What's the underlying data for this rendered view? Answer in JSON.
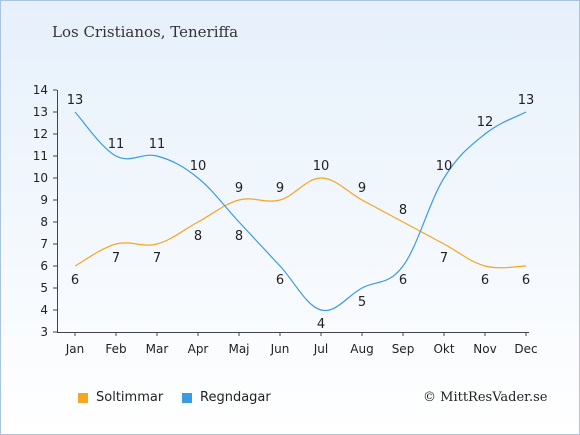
{
  "colors": {
    "sun": "#f5a623",
    "rain": "#3b9ae1"
  },
  "footer": {
    "copyright": "© MittResVader.se"
  },
  "chart_data": {
    "type": "line",
    "title": "Los Cristianos, Teneriffa",
    "categories": [
      "Jan",
      "Feb",
      "Mar",
      "Apr",
      "Maj",
      "Jun",
      "Jul",
      "Aug",
      "Sep",
      "Okt",
      "Nov",
      "Dec"
    ],
    "series": [
      {
        "name": "Soltimmar",
        "color": "#f5a623",
        "values": [
          6,
          7,
          7,
          8,
          9,
          9,
          10,
          9,
          8,
          7,
          6,
          6
        ]
      },
      {
        "name": "Regndagar",
        "color": "#3b9ae1",
        "values": [
          13,
          11,
          11,
          10,
          8,
          6,
          4,
          5,
          6,
          10,
          12,
          13
        ]
      }
    ],
    "ylim": [
      3,
      14
    ],
    "yticks": [
      3,
      4,
      5,
      6,
      7,
      8,
      9,
      10,
      11,
      12,
      13,
      14
    ],
    "xlabel": "",
    "ylabel": "",
    "grid": false,
    "legend": "bottom-left"
  }
}
